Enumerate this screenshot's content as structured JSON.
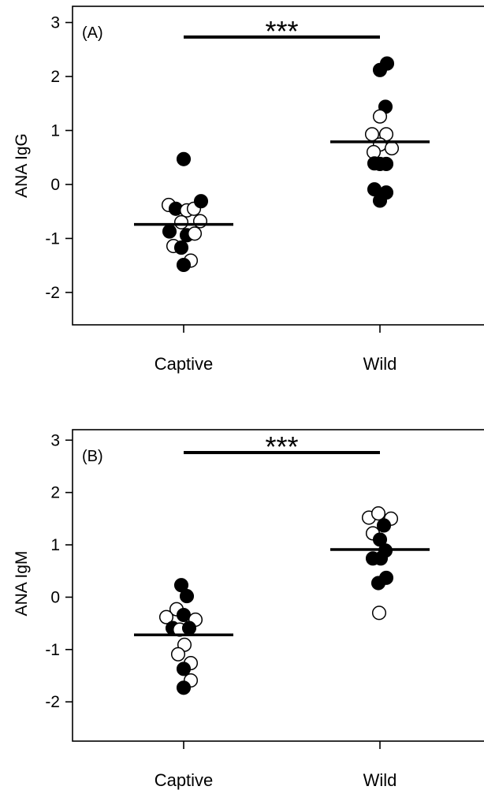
{
  "chart_data": [
    {
      "type": "scatter",
      "panel_label": "(A)",
      "ylabel": "ANA IgG",
      "ylim": [
        -2.6,
        3.3
      ],
      "yticks": [
        -2,
        -1,
        0,
        1,
        2,
        3
      ],
      "categories": [
        "Captive",
        "Wild"
      ],
      "significance": "***",
      "colors": {
        "filled": "#000000",
        "open": "#ffffff",
        "line": "#000000"
      },
      "medians": [
        -0.74,
        0.79
      ],
      "points": [
        {
          "group": "Captive",
          "offset": 0.0,
          "y": 0.47,
          "filled": true
        },
        {
          "group": "Captive",
          "offset": -0.19,
          "y": -0.38,
          "filled": false
        },
        {
          "group": "Captive",
          "offset": -0.1,
          "y": -0.45,
          "filled": true
        },
        {
          "group": "Captive",
          "offset": 0.04,
          "y": -0.48,
          "filled": false
        },
        {
          "group": "Captive",
          "offset": 0.13,
          "y": -0.45,
          "filled": false
        },
        {
          "group": "Captive",
          "offset": 0.22,
          "y": -0.31,
          "filled": true
        },
        {
          "group": "Captive",
          "offset": -0.03,
          "y": -0.7,
          "filled": false
        },
        {
          "group": "Captive",
          "offset": 0.21,
          "y": -0.68,
          "filled": false
        },
        {
          "group": "Captive",
          "offset": -0.18,
          "y": -0.87,
          "filled": true
        },
        {
          "group": "Captive",
          "offset": 0.04,
          "y": -0.94,
          "filled": true
        },
        {
          "group": "Captive",
          "offset": 0.14,
          "y": -0.91,
          "filled": false
        },
        {
          "group": "Captive",
          "offset": -0.13,
          "y": -1.14,
          "filled": false
        },
        {
          "group": "Captive",
          "offset": -0.03,
          "y": -1.17,
          "filled": true
        },
        {
          "group": "Captive",
          "offset": 0.09,
          "y": -1.41,
          "filled": false
        },
        {
          "group": "Captive",
          "offset": 0.0,
          "y": -1.49,
          "filled": true
        },
        {
          "group": "Wild",
          "offset": 0.09,
          "y": 2.24,
          "filled": true
        },
        {
          "group": "Wild",
          "offset": 0.0,
          "y": 2.12,
          "filled": true
        },
        {
          "group": "Wild",
          "offset": 0.07,
          "y": 1.44,
          "filled": true
        },
        {
          "group": "Wild",
          "offset": 0.0,
          "y": 1.26,
          "filled": false
        },
        {
          "group": "Wild",
          "offset": -0.1,
          "y": 0.93,
          "filled": false
        },
        {
          "group": "Wild",
          "offset": 0.08,
          "y": 0.93,
          "filled": false
        },
        {
          "group": "Wild",
          "offset": 0.0,
          "y": 0.74,
          "filled": false
        },
        {
          "group": "Wild",
          "offset": -0.08,
          "y": 0.6,
          "filled": false
        },
        {
          "group": "Wild",
          "offset": 0.15,
          "y": 0.67,
          "filled": false
        },
        {
          "group": "Wild",
          "offset": -0.07,
          "y": 0.39,
          "filled": true
        },
        {
          "group": "Wild",
          "offset": 0.0,
          "y": 0.38,
          "filled": true
        },
        {
          "group": "Wild",
          "offset": 0.08,
          "y": 0.38,
          "filled": true
        },
        {
          "group": "Wild",
          "offset": -0.07,
          "y": -0.09,
          "filled": true
        },
        {
          "group": "Wild",
          "offset": 0.08,
          "y": -0.15,
          "filled": true
        },
        {
          "group": "Wild",
          "offset": 0.0,
          "y": -0.3,
          "filled": true
        }
      ]
    },
    {
      "type": "scatter",
      "panel_label": "(B)",
      "ylabel": "ANA IgM",
      "ylim": [
        -2.75,
        3.2
      ],
      "yticks": [
        -2,
        -1,
        0,
        1,
        2,
        3
      ],
      "categories": [
        "Captive",
        "Wild"
      ],
      "significance": "***",
      "colors": {
        "filled": "#000000",
        "open": "#ffffff",
        "line": "#000000"
      },
      "medians": [
        -0.72,
        0.91
      ],
      "points": [
        {
          "group": "Captive",
          "offset": -0.03,
          "y": 0.23,
          "filled": true
        },
        {
          "group": "Captive",
          "offset": 0.04,
          "y": 0.02,
          "filled": true
        },
        {
          "group": "Captive",
          "offset": -0.09,
          "y": -0.23,
          "filled": false
        },
        {
          "group": "Captive",
          "offset": 0.0,
          "y": -0.34,
          "filled": true
        },
        {
          "group": "Captive",
          "offset": -0.22,
          "y": -0.38,
          "filled": false
        },
        {
          "group": "Captive",
          "offset": 0.15,
          "y": -0.43,
          "filled": false
        },
        {
          "group": "Captive",
          "offset": -0.14,
          "y": -0.59,
          "filled": true
        },
        {
          "group": "Captive",
          "offset": -0.05,
          "y": -0.62,
          "filled": false
        },
        {
          "group": "Captive",
          "offset": 0.07,
          "y": -0.59,
          "filled": true
        },
        {
          "group": "Captive",
          "offset": 0.01,
          "y": -0.91,
          "filled": false
        },
        {
          "group": "Captive",
          "offset": -0.07,
          "y": -1.09,
          "filled": false
        },
        {
          "group": "Captive",
          "offset": 0.09,
          "y": -1.26,
          "filled": false
        },
        {
          "group": "Captive",
          "offset": 0.0,
          "y": -1.37,
          "filled": true
        },
        {
          "group": "Captive",
          "offset": 0.09,
          "y": -1.59,
          "filled": false
        },
        {
          "group": "Captive",
          "offset": 0.0,
          "y": -1.73,
          "filled": true
        },
        {
          "group": "Wild",
          "offset": -0.14,
          "y": 1.52,
          "filled": false
        },
        {
          "group": "Wild",
          "offset": -0.02,
          "y": 1.6,
          "filled": false
        },
        {
          "group": "Wild",
          "offset": 0.14,
          "y": 1.5,
          "filled": false
        },
        {
          "group": "Wild",
          "offset": 0.05,
          "y": 1.37,
          "filled": true
        },
        {
          "group": "Wild",
          "offset": -0.09,
          "y": 1.22,
          "filled": false
        },
        {
          "group": "Wild",
          "offset": 0.0,
          "y": 1.1,
          "filled": true
        },
        {
          "group": "Wild",
          "offset": 0.07,
          "y": 0.89,
          "filled": true
        },
        {
          "group": "Wild",
          "offset": -0.09,
          "y": 0.74,
          "filled": true
        },
        {
          "group": "Wild",
          "offset": 0.01,
          "y": 0.74,
          "filled": true
        },
        {
          "group": "Wild",
          "offset": -0.02,
          "y": 0.27,
          "filled": true
        },
        {
          "group": "Wild",
          "offset": 0.08,
          "y": 0.37,
          "filled": true
        },
        {
          "group": "Wild",
          "offset": -0.01,
          "y": -0.3,
          "filled": false
        }
      ]
    }
  ]
}
